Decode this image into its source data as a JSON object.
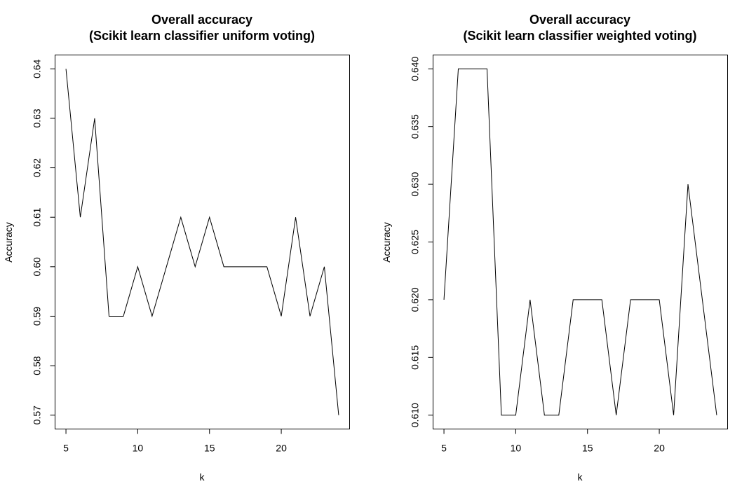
{
  "chart_data": [
    {
      "type": "line",
      "title_line1": "Overall accuracy",
      "title_line2": "(Scikit learn classifier uniform voting)",
      "xlabel": "k",
      "ylabel": "Accuracy",
      "x": [
        5,
        6,
        7,
        8,
        9,
        10,
        11,
        12,
        13,
        14,
        15,
        16,
        17,
        18,
        19,
        20,
        21,
        22,
        23,
        24
      ],
      "values": [
        0.64,
        0.61,
        0.63,
        0.59,
        0.59,
        0.6,
        0.59,
        0.6,
        0.61,
        0.6,
        0.61,
        0.6,
        0.6,
        0.6,
        0.6,
        0.59,
        0.61,
        0.59,
        0.6,
        0.57
      ],
      "xlim": [
        4.24,
        24.76
      ],
      "ylim": [
        0.5672,
        0.6428
      ],
      "xticks": [
        5,
        10,
        15,
        20
      ],
      "xtick_labels": [
        "5",
        "10",
        "15",
        "20"
      ],
      "yticks": [
        0.57,
        0.58,
        0.59,
        0.6,
        0.61,
        0.62,
        0.63,
        0.64
      ],
      "ytick_labels": [
        "0.57",
        "0.58",
        "0.59",
        "0.60",
        "0.61",
        "0.62",
        "0.63",
        "0.64"
      ],
      "grid": false,
      "color": "#000000"
    },
    {
      "type": "line",
      "title_line1": "Overall accuracy",
      "title_line2": "(Scikit learn classifier weighted voting)",
      "xlabel": "k",
      "ylabel": "Accuracy",
      "x": [
        5,
        6,
        7,
        8,
        9,
        10,
        11,
        12,
        13,
        14,
        15,
        16,
        17,
        18,
        19,
        20,
        21,
        22,
        23,
        24
      ],
      "values": [
        0.62,
        0.64,
        0.64,
        0.64,
        0.61,
        0.61,
        0.62,
        0.61,
        0.61,
        0.62,
        0.62,
        0.62,
        0.61,
        0.62,
        0.62,
        0.62,
        0.61,
        0.63,
        0.62,
        0.61
      ],
      "xlim": [
        4.24,
        24.76
      ],
      "ylim": [
        0.6088,
        0.6412
      ],
      "xticks": [
        5,
        10,
        15,
        20
      ],
      "xtick_labels": [
        "5",
        "10",
        "15",
        "20"
      ],
      "yticks": [
        0.61,
        0.615,
        0.62,
        0.625,
        0.63,
        0.635,
        0.64
      ],
      "ytick_labels": [
        "0.610",
        "0.615",
        "0.620",
        "0.625",
        "0.630",
        "0.635",
        "0.640"
      ],
      "grid": false,
      "color": "#000000"
    }
  ]
}
